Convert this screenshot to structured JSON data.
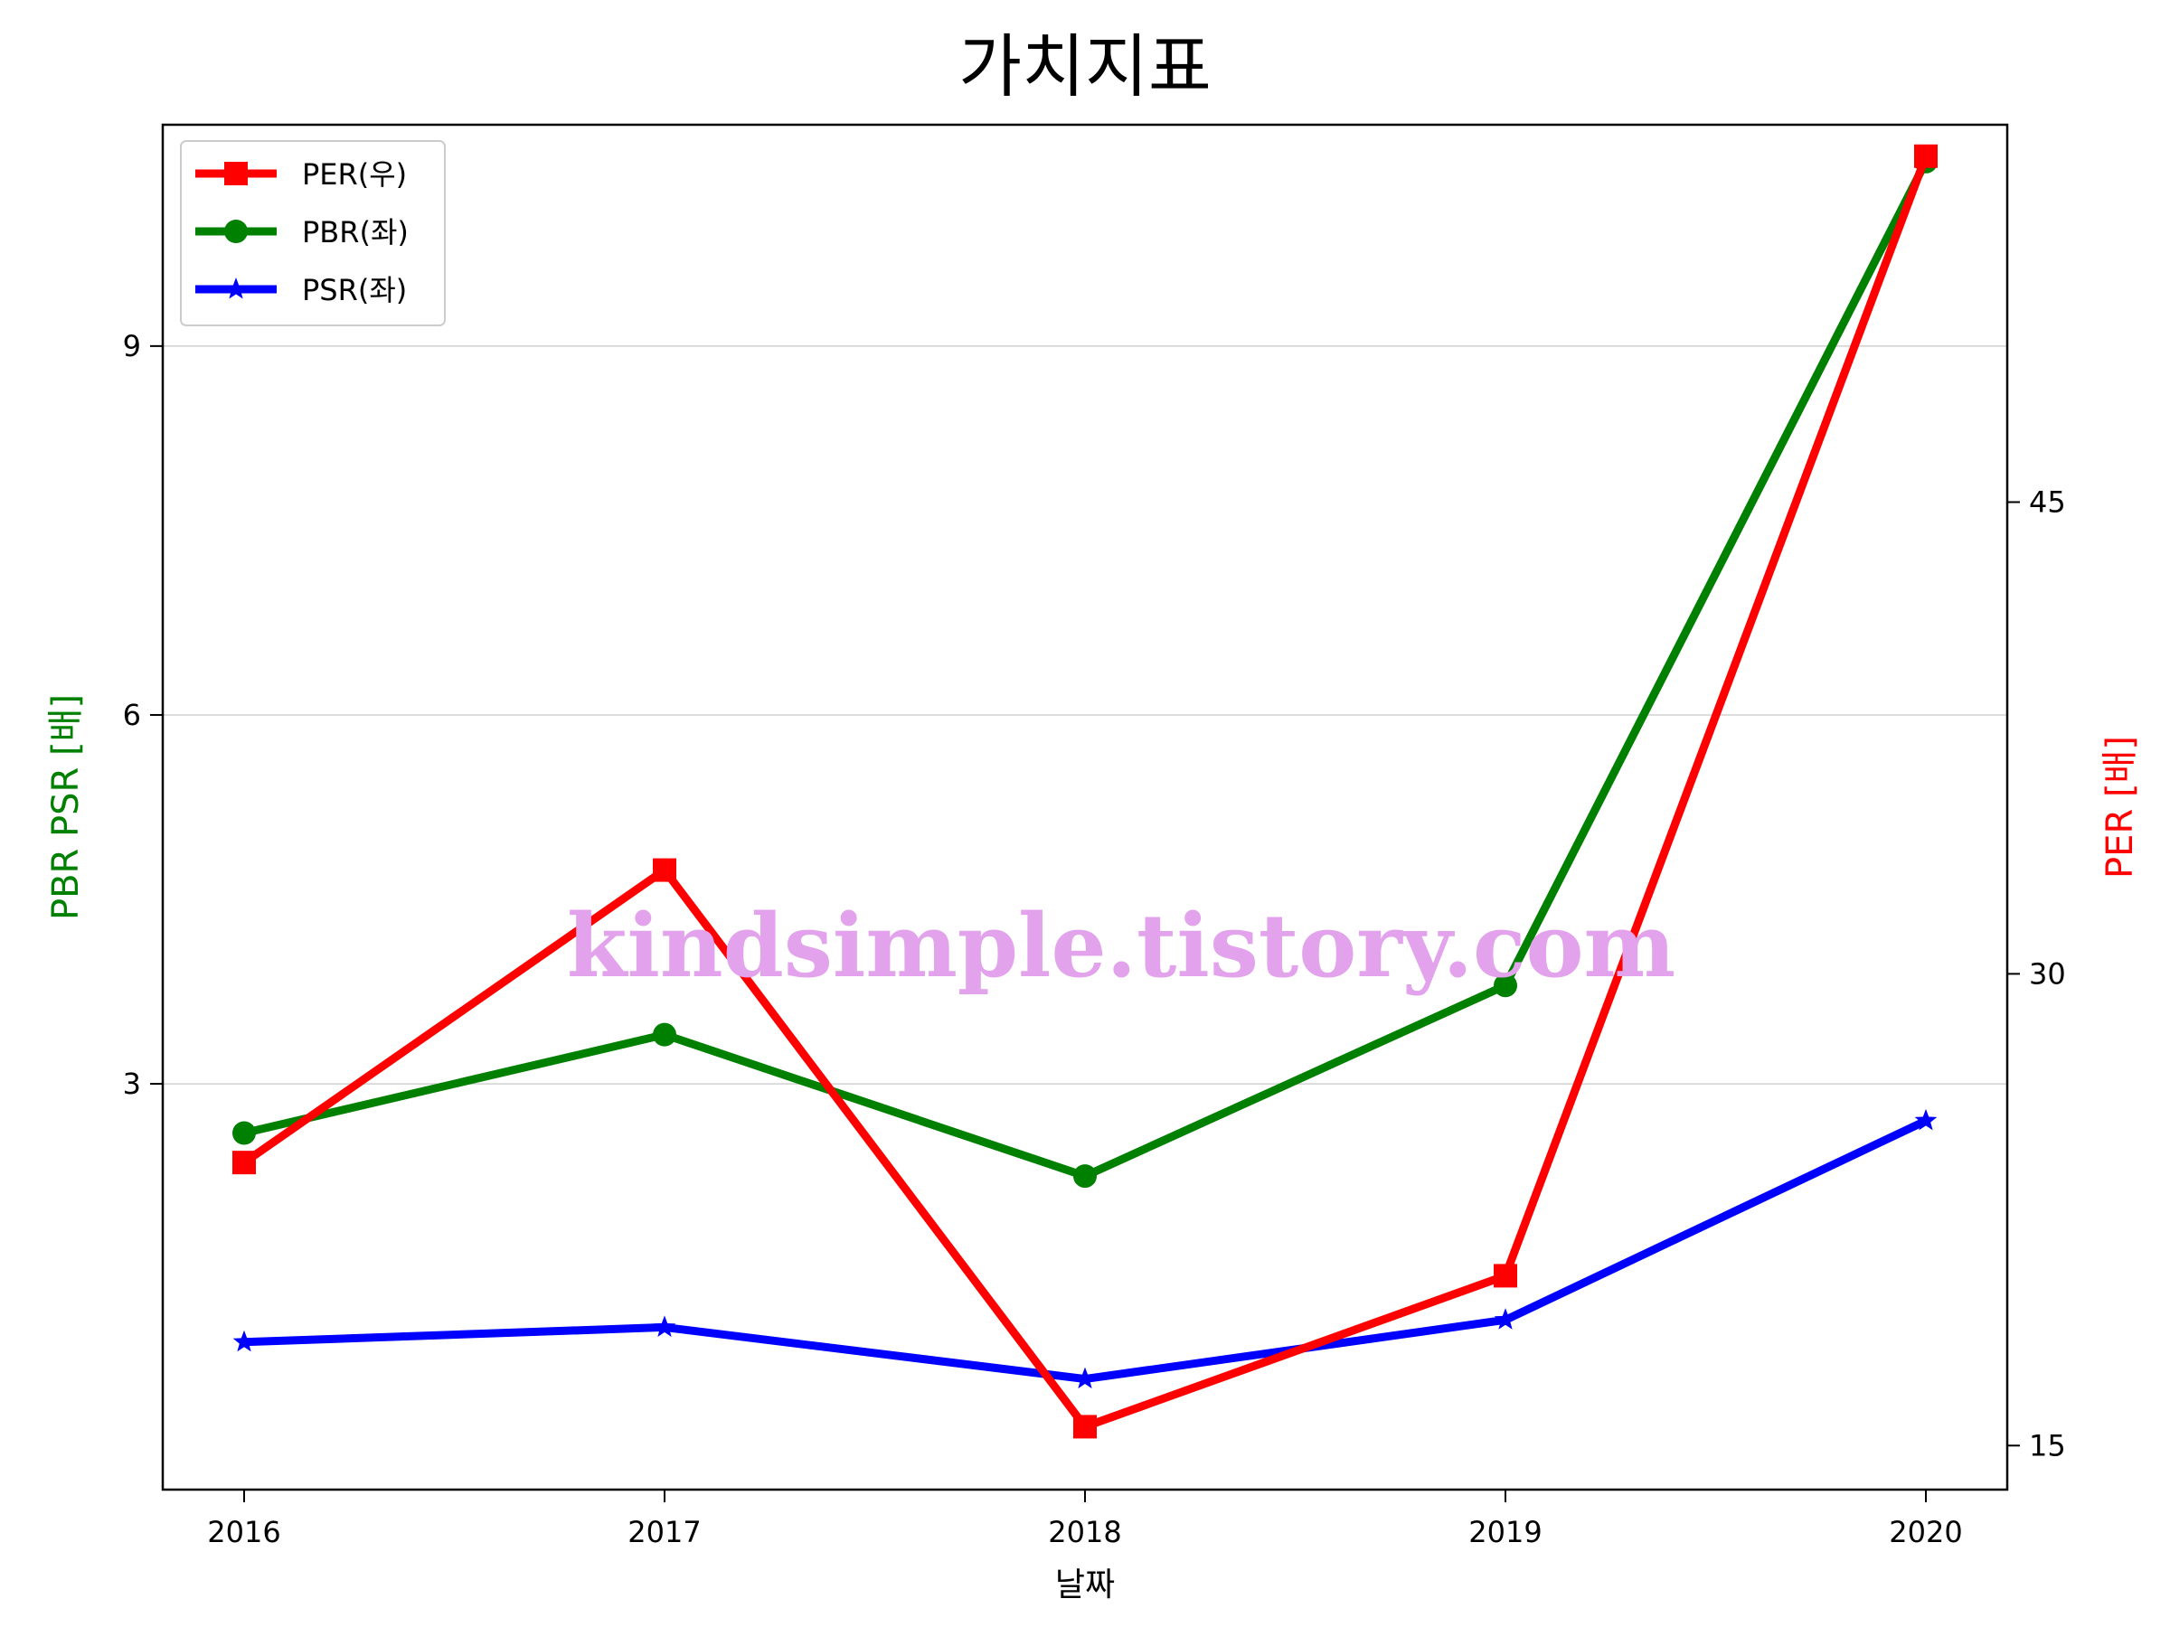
{
  "chart_data": {
    "type": "line",
    "title": "가치지표",
    "xlabel": "날짜",
    "ylabel_left": "PBR PSR [배]",
    "ylabel_right": "PER [배]",
    "categories": [
      "2016",
      "2017",
      "2018",
      "2019",
      "2020"
    ],
    "ylim_left": [
      -0.3,
      10.8
    ],
    "ylim_right": [
      13.6,
      57.0
    ],
    "yticks_left": [
      3,
      6,
      9
    ],
    "yticks_right": [
      15,
      30,
      45
    ],
    "grid": "horizontal",
    "legend_position": "top-left",
    "series": [
      {
        "name": "PER(우)",
        "axis": "right",
        "color": "#ff0000",
        "marker": "square",
        "values": [
          24.0,
          33.3,
          15.6,
          20.4,
          56.0
        ]
      },
      {
        "name": "PBR(좌)",
        "axis": "left",
        "color": "#008000",
        "marker": "circle",
        "values": [
          2.6,
          3.4,
          2.25,
          3.8,
          10.5
        ]
      },
      {
        "name": "PSR(좌)",
        "axis": "left",
        "color": "#0000ff",
        "marker": "star",
        "values": [
          0.9,
          1.02,
          0.6,
          1.08,
          2.7
        ]
      }
    ],
    "watermark": "kindsimple.tistory.com"
  }
}
